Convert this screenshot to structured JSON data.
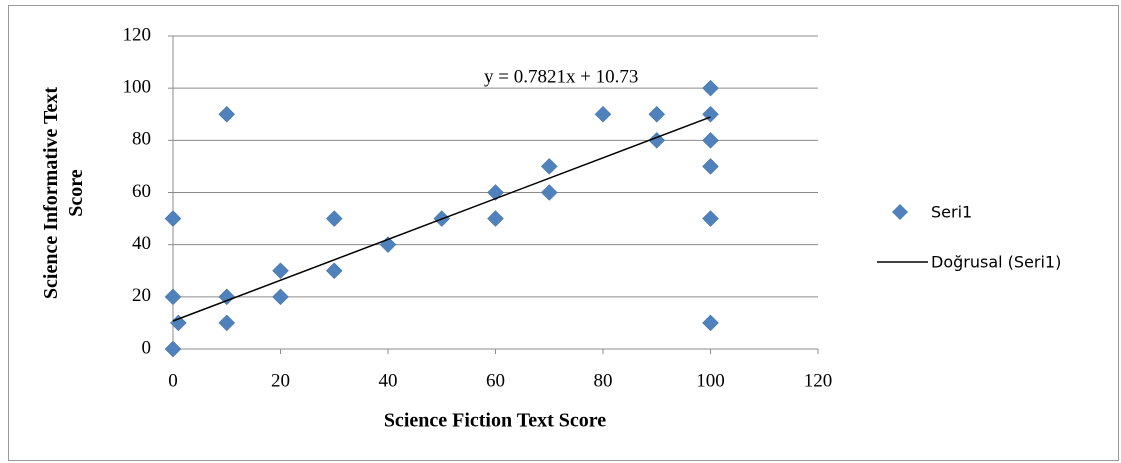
{
  "chart_data": {
    "type": "scatter",
    "x_label": "Science Fiction Text Score",
    "y_label": "Science Informative Text Score",
    "series": [
      {
        "name": "Seri1",
        "color": "#4f81bd",
        "x": [
          0,
          0,
          0,
          1,
          10,
          10,
          10,
          20,
          20,
          30,
          30,
          40,
          50,
          60,
          60,
          70,
          70,
          80,
          90,
          90,
          100,
          100,
          100,
          100,
          100,
          100
        ],
        "values": [
          50,
          20,
          0,
          10,
          90,
          20,
          10,
          30,
          20,
          50,
          30,
          40,
          50,
          60,
          50,
          70,
          60,
          90,
          90,
          80,
          100,
          90,
          80,
          70,
          50,
          10
        ]
      }
    ],
    "trendline": {
      "name": "Doğrusal (Seri1)",
      "color": "#000000",
      "slope": 0.7821,
      "intercept": 10.73,
      "label": "y = 0.7821x + 10.73"
    },
    "xlim": [
      0,
      120
    ],
    "xticks": [
      0,
      20,
      40,
      60,
      80,
      100,
      120
    ],
    "ylim": [
      0,
      120
    ],
    "yticks": [
      0,
      20,
      40,
      60,
      80,
      100,
      120
    ],
    "grid": true,
    "legend": "right"
  }
}
